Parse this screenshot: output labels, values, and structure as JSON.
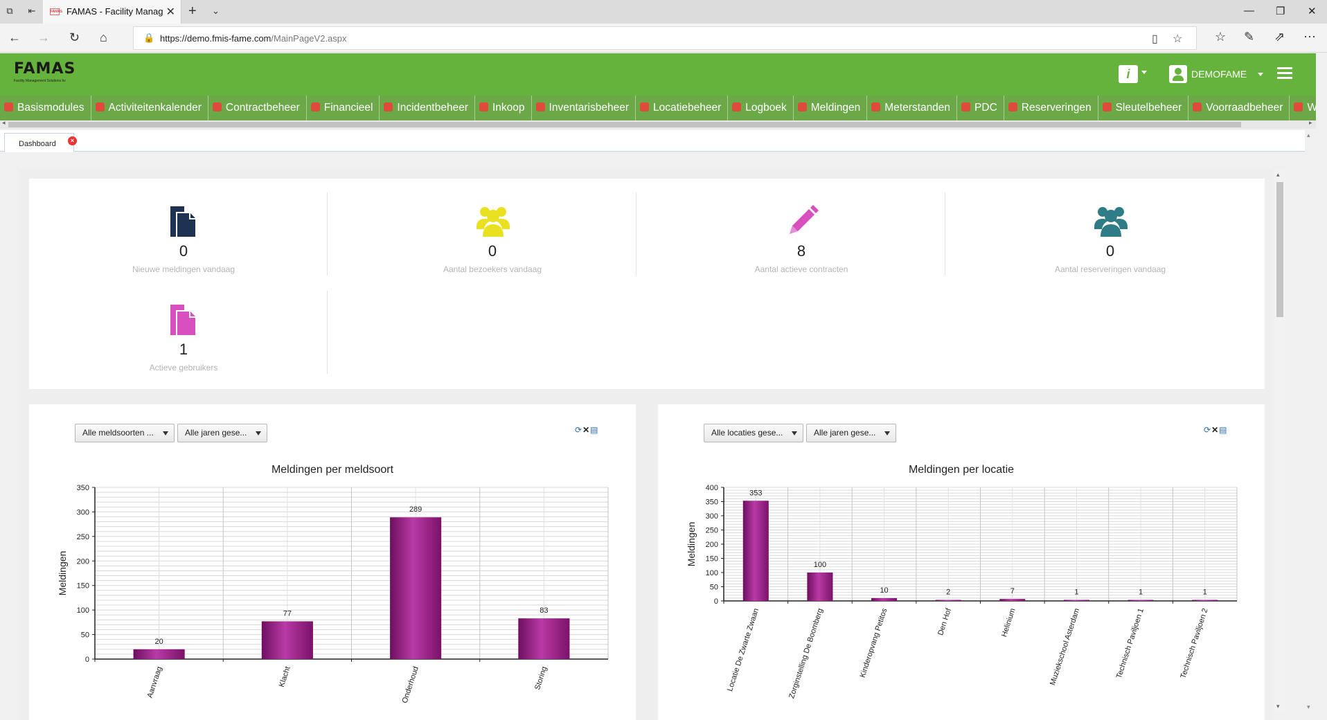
{
  "browser": {
    "tab_title": "FAMAS - Facility Manag",
    "tab_favicon": "FAMAS",
    "url_domain": "https://demo.fmis-fame.com",
    "url_path": "/MainPageV2.aspx"
  },
  "header": {
    "logo_text": "FAMAS",
    "logo_subtitle": "Facility Management Solutions bv",
    "user_name": "DEMOFAME",
    "accent_color": "#65b23c"
  },
  "menu": {
    "items": [
      {
        "label": "Basismodules",
        "icon": "home-icon"
      },
      {
        "label": "Activiteitenkalender",
        "icon": "calendar-icon"
      },
      {
        "label": "Contractbeheer",
        "icon": "contract-icon"
      },
      {
        "label": "Financieel",
        "icon": "euro-icon"
      },
      {
        "label": "Incidentbeheer",
        "icon": "incident-icon"
      },
      {
        "label": "Inkoop",
        "icon": "cart-icon"
      },
      {
        "label": "Inventarisbeheer",
        "icon": "inventory-icon"
      },
      {
        "label": "Locatiebeheer",
        "icon": "location-icon"
      },
      {
        "label": "Logboek",
        "icon": "logbook-icon"
      },
      {
        "label": "Meldingen",
        "icon": "notification-icon"
      },
      {
        "label": "Meterstanden",
        "icon": "meter-icon"
      },
      {
        "label": "PDC",
        "icon": "pdc-icon"
      },
      {
        "label": "Reserveringen",
        "icon": "reservation-icon"
      },
      {
        "label": "Sleutelbeheer",
        "icon": "key-icon"
      },
      {
        "label": "Voorraadbeheer",
        "icon": "stock-icon"
      },
      {
        "label": "Wage",
        "icon": "vehicle-icon"
      }
    ]
  },
  "page_tab": {
    "label": "Dashboard"
  },
  "stats": [
    {
      "value": "0",
      "label": "Nieuwe meldingen vandaag",
      "icon": "document-icon",
      "color": "#1e3251"
    },
    {
      "value": "0",
      "label": "Aantal bezoekers vandaag",
      "icon": "users-icon",
      "color": "#e8e020"
    },
    {
      "value": "8",
      "label": "Aantal actieve contracten",
      "icon": "pencil-icon",
      "color": "#d84fc0"
    },
    {
      "value": "0",
      "label": "Aantal reserveringen vandaag",
      "icon": "users-icon",
      "color": "#2e7c86"
    },
    {
      "value": "1",
      "label": "Actieve gebruikers",
      "icon": "document-icon",
      "color": "#d84fc0"
    }
  ],
  "charts": {
    "left": {
      "dropdown1": "Alle meldsoorten ...",
      "dropdown2": "Alle jaren gese..."
    },
    "right": {
      "dropdown1": "Alle locaties gese...",
      "dropdown2": "Alle jaren gese..."
    }
  },
  "chart_data": [
    {
      "type": "bar",
      "title": "Meldingen per meldsoort",
      "xlabel": "",
      "ylabel": "Meldingen",
      "ylim": [
        0,
        350
      ],
      "yticks": [
        0,
        50,
        100,
        150,
        200,
        250,
        300,
        350
      ],
      "categories": [
        "Aanvraag",
        "Klacht",
        "Onderhoud",
        "Storing"
      ],
      "values": [
        20,
        77,
        289,
        83
      ],
      "color": "#8e1a7c",
      "grid": true
    },
    {
      "type": "bar",
      "title": "Meldingen per locatie",
      "xlabel": "",
      "ylabel": "Meldingen",
      "ylim": [
        0,
        400
      ],
      "yticks": [
        0,
        50,
        100,
        150,
        200,
        250,
        300,
        350,
        400
      ],
      "categories": [
        "Locatie De Zwarte Zwaan",
        "Zorginstelling De Boomberg",
        "Kinderopvang Petitos",
        "Den Hof",
        "Helinium",
        "Muziekschool Asterdam",
        "Technisch Paviljoen 1",
        "Technisch Paviljoen 2"
      ],
      "values": [
        353,
        100,
        10,
        2,
        7,
        1,
        1,
        1
      ],
      "color": "#8e1a7c",
      "grid": true
    }
  ]
}
